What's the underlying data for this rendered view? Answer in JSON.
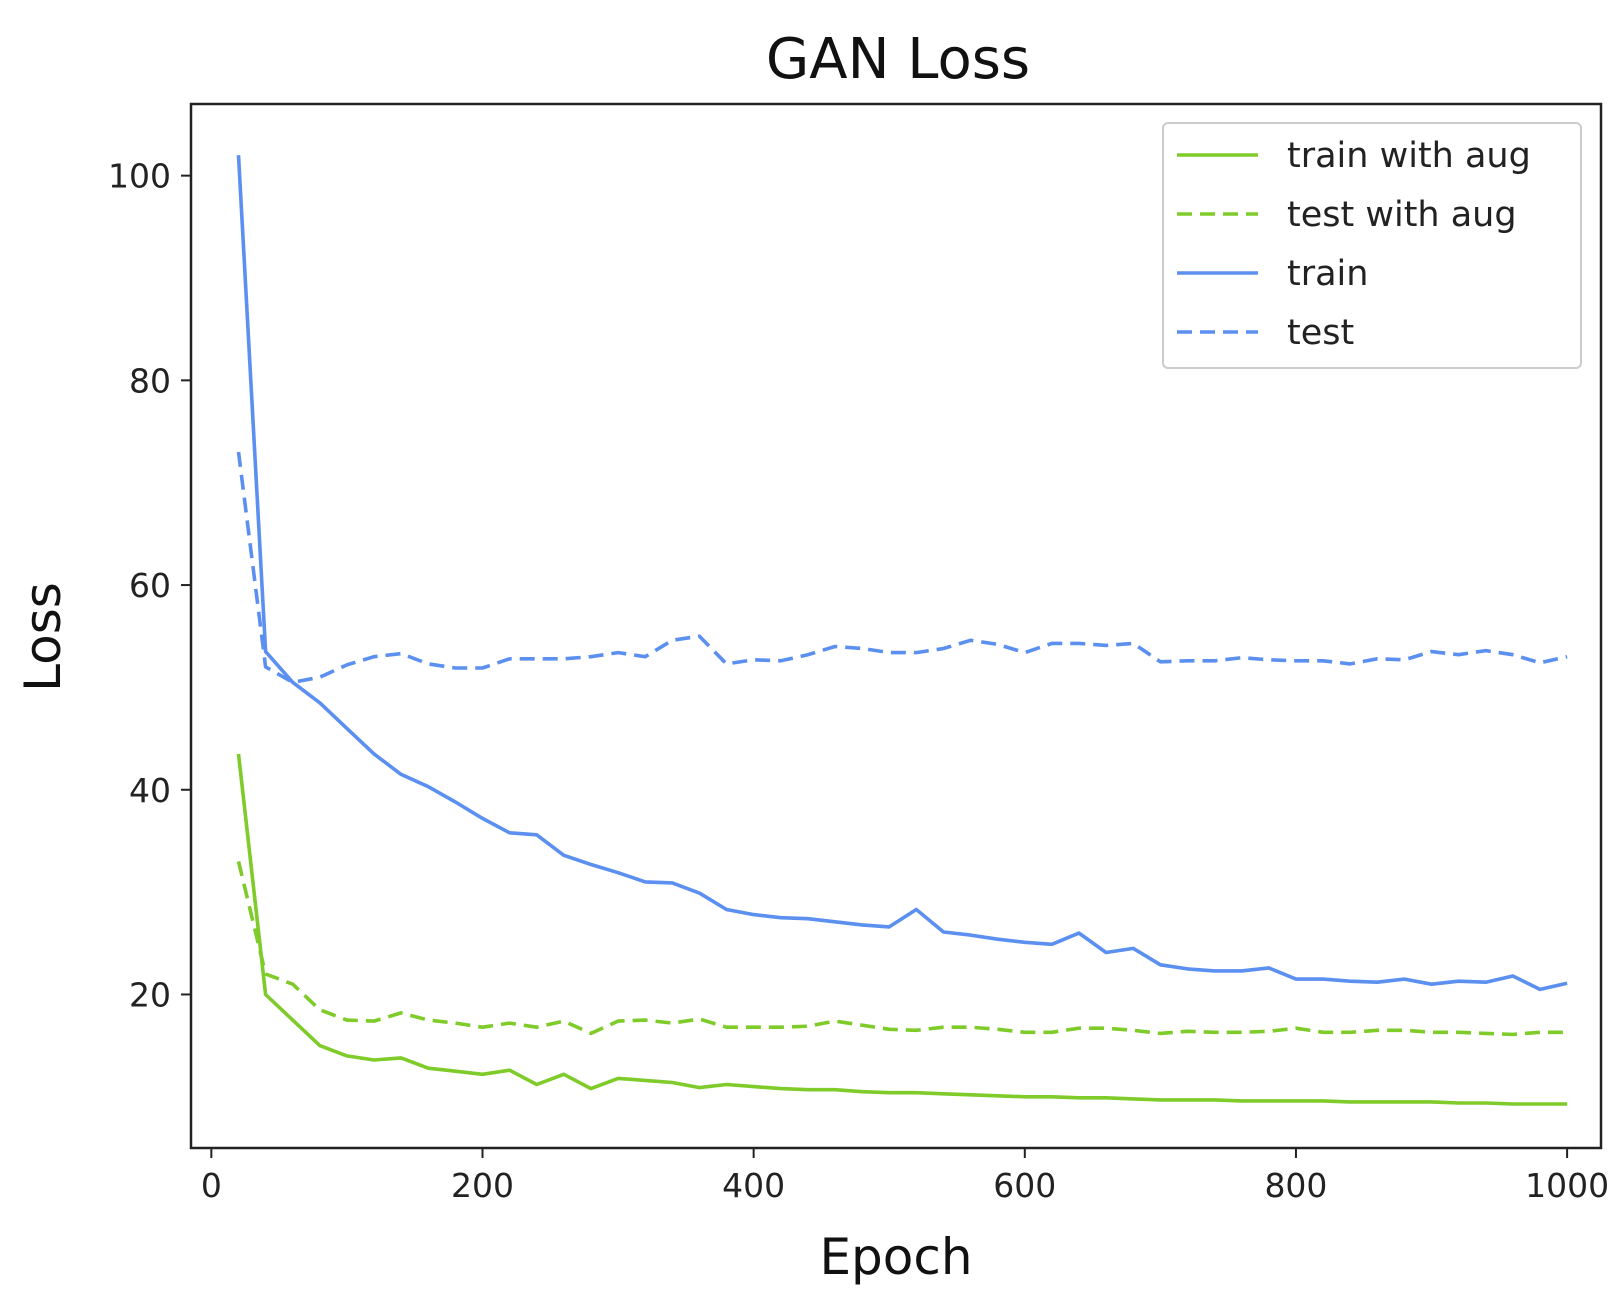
{
  "chart_data": {
    "type": "line",
    "title": "GAN Loss",
    "xlabel": "Epoch",
    "ylabel": "Loss",
    "xlim": [
      -15,
      1025
    ],
    "ylim": [
      5,
      107
    ],
    "xticks": [
      0,
      200,
      400,
      600,
      800,
      1000
    ],
    "yticks": [
      20,
      40,
      60,
      80,
      100
    ],
    "grid": false,
    "legend_position": "top-right",
    "colors": {
      "green": "#7ecb2a",
      "blue": "#5b8ff0"
    },
    "series": [
      {
        "name": "train with aug",
        "color": "#7ecb2a",
        "style": "solid",
        "x": [
          20,
          40,
          60,
          80,
          100,
          120,
          140,
          160,
          180,
          200,
          220,
          240,
          260,
          280,
          300,
          320,
          340,
          360,
          380,
          400,
          420,
          440,
          460,
          480,
          500,
          520,
          540,
          560,
          580,
          600,
          620,
          640,
          660,
          680,
          700,
          720,
          740,
          760,
          780,
          800,
          820,
          840,
          860,
          880,
          900,
          920,
          940,
          960,
          980,
          1000
        ],
        "values": [
          43.5,
          20,
          17.5,
          15,
          14,
          13.6,
          13.8,
          12.8,
          12.5,
          12.2,
          12.6,
          11.2,
          12.2,
          10.8,
          11.8,
          11.6,
          11.4,
          10.9,
          11.2,
          11.0,
          10.8,
          10.7,
          10.7,
          10.5,
          10.4,
          10.4,
          10.3,
          10.2,
          10.1,
          10.0,
          10.0,
          9.9,
          9.9,
          9.8,
          9.7,
          9.7,
          9.7,
          9.6,
          9.6,
          9.6,
          9.6,
          9.5,
          9.5,
          9.5,
          9.5,
          9.4,
          9.4,
          9.3,
          9.3,
          9.3
        ]
      },
      {
        "name": "test with aug",
        "color": "#7ecb2a",
        "style": "dashed",
        "x": [
          20,
          40,
          60,
          80,
          100,
          120,
          140,
          160,
          180,
          200,
          220,
          240,
          260,
          280,
          300,
          320,
          340,
          360,
          380,
          400,
          420,
          440,
          460,
          480,
          500,
          520,
          540,
          560,
          580,
          600,
          620,
          640,
          660,
          680,
          700,
          720,
          740,
          760,
          780,
          800,
          820,
          840,
          860,
          880,
          900,
          920,
          940,
          960,
          980,
          1000
        ],
        "values": [
          33,
          22,
          21,
          18.5,
          17.5,
          17.4,
          18.2,
          17.5,
          17.2,
          16.8,
          17.2,
          16.8,
          17.4,
          16.2,
          17.4,
          17.5,
          17.2,
          17.6,
          16.8,
          16.8,
          16.8,
          16.9,
          17.4,
          17.0,
          16.6,
          16.5,
          16.8,
          16.8,
          16.6,
          16.3,
          16.3,
          16.7,
          16.7,
          16.5,
          16.2,
          16.4,
          16.3,
          16.3,
          16.4,
          16.7,
          16.3,
          16.3,
          16.5,
          16.5,
          16.3,
          16.3,
          16.2,
          16.1,
          16.3,
          16.3
        ]
      },
      {
        "name": "train",
        "color": "#5b8ff0",
        "style": "solid",
        "x": [
          20,
          40,
          60,
          80,
          100,
          120,
          140,
          160,
          180,
          200,
          220,
          240,
          260,
          280,
          300,
          320,
          340,
          360,
          380,
          400,
          420,
          440,
          460,
          480,
          500,
          520,
          540,
          560,
          580,
          600,
          620,
          640,
          660,
          680,
          700,
          720,
          740,
          760,
          780,
          800,
          820,
          840,
          860,
          880,
          900,
          920,
          940,
          960,
          980,
          1000
        ],
        "values": [
          102,
          53.5,
          50.5,
          48.5,
          46,
          43.5,
          41.5,
          40.3,
          38.8,
          37.2,
          35.8,
          35.6,
          33.6,
          32.7,
          31.9,
          31.0,
          30.9,
          29.9,
          28.3,
          27.8,
          27.5,
          27.4,
          27.1,
          26.8,
          26.6,
          28.3,
          26.1,
          25.8,
          25.4,
          25.1,
          24.9,
          26.0,
          24.1,
          24.5,
          22.9,
          22.5,
          22.3,
          22.3,
          22.6,
          21.5,
          21.5,
          21.3,
          21.2,
          21.5,
          21.0,
          21.3,
          21.2,
          21.8,
          20.5,
          21.1
        ]
      },
      {
        "name": "test",
        "color": "#5b8ff0",
        "style": "dashed",
        "x": [
          20,
          40,
          60,
          80,
          100,
          120,
          140,
          160,
          180,
          200,
          220,
          240,
          260,
          280,
          300,
          320,
          340,
          360,
          380,
          400,
          420,
          440,
          460,
          480,
          500,
          520,
          540,
          560,
          580,
          600,
          620,
          640,
          660,
          680,
          700,
          720,
          740,
          760,
          780,
          800,
          820,
          840,
          860,
          880,
          900,
          920,
          940,
          960,
          980,
          1000
        ],
        "values": [
          73,
          52,
          50.5,
          51,
          52.2,
          53,
          53.3,
          52.3,
          51.9,
          51.9,
          52.8,
          52.8,
          52.8,
          53.0,
          53.4,
          53.0,
          54.6,
          55.0,
          52.3,
          52.7,
          52.6,
          53.2,
          54.0,
          53.8,
          53.4,
          53.4,
          53.8,
          54.6,
          54.2,
          53.4,
          54.3,
          54.3,
          54.1,
          54.3,
          52.5,
          52.6,
          52.6,
          52.9,
          52.7,
          52.6,
          52.6,
          52.3,
          52.8,
          52.7,
          53.5,
          53.2,
          53.6,
          53.2,
          52.4,
          53.0
        ]
      }
    ]
  }
}
